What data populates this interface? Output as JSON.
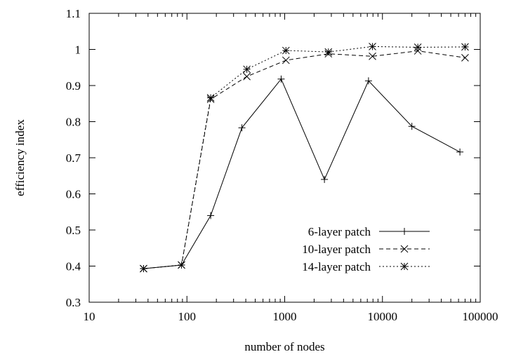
{
  "chart_data": {
    "type": "line",
    "title": "",
    "xlabel": "number of nodes",
    "ylabel": "efficiency index",
    "xscale": "log",
    "xlim": [
      10,
      100000
    ],
    "ylim": [
      0.3,
      1.1
    ],
    "x_ticks": [
      "10",
      "100",
      "1000",
      "10000",
      "100000"
    ],
    "y_ticks": [
      "0.3",
      "0.4",
      "0.5",
      "0.6",
      "0.7",
      "0.8",
      "0.9",
      "1",
      "1.1"
    ],
    "grid": false,
    "legend_position": "bottom-right",
    "series": [
      {
        "name": "6-layer patch",
        "marker": "plus",
        "dash": "solid",
        "x": [
          36,
          88,
          175,
          365,
          920,
          2550,
          7200,
          20000,
          62000
        ],
        "y": [
          0.393,
          0.403,
          0.54,
          0.783,
          0.918,
          0.64,
          0.913,
          0.787,
          0.716
        ]
      },
      {
        "name": "10-layer patch",
        "marker": "cross",
        "dash": "dashed",
        "x": [
          36,
          88,
          175,
          410,
          1030,
          2800,
          7900,
          23000,
          70000
        ],
        "y": [
          0.393,
          0.403,
          0.862,
          0.925,
          0.97,
          0.988,
          0.981,
          0.996,
          0.977
        ]
      },
      {
        "name": "14-layer patch",
        "marker": "star",
        "dash": "dotted",
        "x": [
          36,
          88,
          175,
          410,
          1030,
          2800,
          7900,
          23000,
          70000
        ],
        "y": [
          0.393,
          0.403,
          0.866,
          0.945,
          0.997,
          0.993,
          1.008,
          1.006,
          1.007
        ]
      }
    ]
  }
}
